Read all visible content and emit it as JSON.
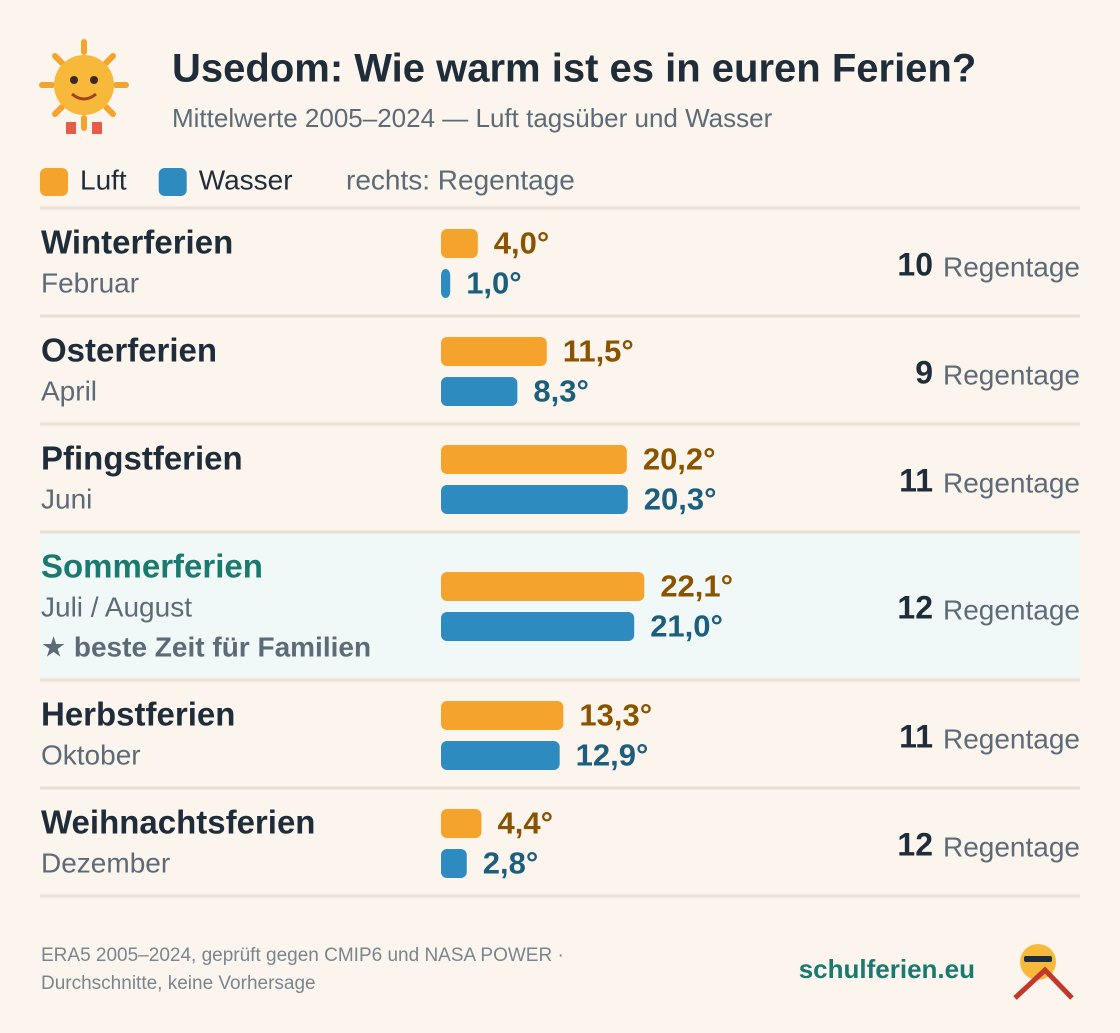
{
  "chart_data": {
    "type": "bar",
    "title": "Usedom: Wie warm ist es in euren Ferien?",
    "subtitle": "Mittelwerte 2005–2024 — Luft tagsüber und Wasser",
    "legend_note": "rechts: Regentage",
    "categories": [
      "Winterferien",
      "Osterferien",
      "Pfingstferien",
      "Sommerferien",
      "Herbstferien",
      "Weihnachtsferien"
    ],
    "periods": [
      "Februar",
      "April",
      "Juni",
      "Juli / August",
      "Oktober",
      "Dezember"
    ],
    "notes": [
      null,
      null,
      null,
      "★ beste Zeit für Familien",
      null,
      null
    ],
    "series": [
      {
        "name": "Luft",
        "color": "#f4a32c",
        "label_color": "#8a5300",
        "values": [
          4.0,
          11.5,
          20.2,
          22.1,
          13.3,
          4.4
        ],
        "value_labels": [
          "4,0°",
          "11,5°",
          "20,2°",
          "22,1°",
          "13,3°",
          "4,4°"
        ]
      },
      {
        "name": "Wasser",
        "color": "#2e8bc0",
        "label_color": "#1c5e7d",
        "values": [
          1.0,
          8.3,
          20.3,
          21.0,
          12.9,
          2.8
        ],
        "value_labels": [
          "1,0°",
          "8,3°",
          "20,3°",
          "21,0°",
          "12,9°",
          "2,8°"
        ]
      }
    ],
    "rain_days": [
      10,
      9,
      11,
      12,
      11,
      12
    ],
    "rain_unit": "Regentage",
    "source": [
      "ERA5 2005–2024, geprüft gegen CMIP6 und NASA POWER ·",
      "Durchschnitte, keine Vorhersage"
    ],
    "brand": "schulferien.eu"
  }
}
